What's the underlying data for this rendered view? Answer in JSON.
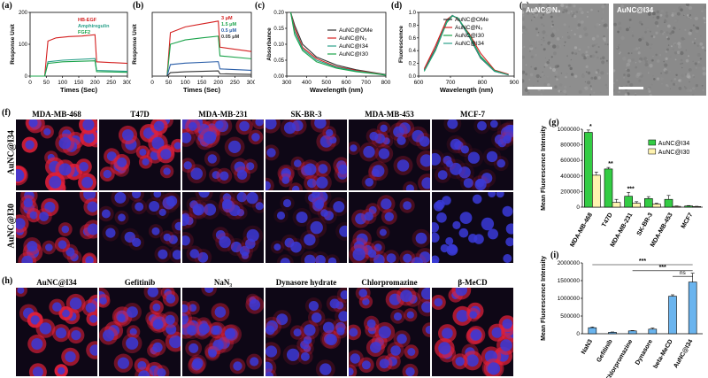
{
  "panel_labels": {
    "a": "(a)",
    "b": "(b)",
    "c": "(c)",
    "d": "(d)",
    "e": "(e)",
    "f": "(f)",
    "g": "(g)",
    "h": "(h)",
    "i": "(i)"
  },
  "colors": {
    "red": "#d42020",
    "green": "#1aa34a",
    "teal": "#2aa08a",
    "dark": "#333333",
    "gray": "#888888",
    "cell_bg": "#100818",
    "bar_green": "#33cc44",
    "bar_yellow": "#fff3b0",
    "bar_blue": "#6ab4ee"
  },
  "chart_data": [
    {
      "panel": "a",
      "type": "line",
      "xlabel": "Times (Sec)",
      "ylabel": "Response Unit",
      "xticks": [
        "0",
        "50",
        "100",
        "150",
        "200",
        "250",
        "300"
      ],
      "yticks": [
        "0",
        "100",
        "200"
      ],
      "xlim": [
        0,
        300
      ],
      "ylim": [
        0,
        200
      ],
      "series": [
        {
          "name": "HB-EGF",
          "color": "#d42020",
          "x": [
            0,
            45,
            55,
            80,
            120,
            160,
            200,
            205,
            300
          ],
          "y": [
            0,
            0,
            110,
            120,
            124,
            126,
            130,
            45,
            40
          ]
        },
        {
          "name": "Amphiregulin",
          "color": "#2aa08a",
          "x": [
            0,
            45,
            55,
            100,
            200,
            205,
            300
          ],
          "y": [
            0,
            0,
            45,
            50,
            55,
            18,
            15
          ]
        },
        {
          "name": "FGF2",
          "color": "#1aa34a",
          "x": [
            0,
            45,
            55,
            100,
            200,
            205,
            300
          ],
          "y": [
            0,
            0,
            40,
            45,
            48,
            14,
            12
          ]
        }
      ]
    },
    {
      "panel": "b",
      "type": "line",
      "xlabel": "Times (Sec)",
      "ylabel": "Response Unit",
      "xticks": [
        "0",
        "50",
        "100",
        "150",
        "200",
        "250",
        "300"
      ],
      "xlim": [
        0,
        300
      ],
      "ylim": [
        0,
        220
      ],
      "series": [
        {
          "name": "3 μM",
          "color": "#d42020",
          "x": [
            0,
            45,
            55,
            100,
            150,
            200,
            205,
            300
          ],
          "y": [
            0,
            0,
            150,
            170,
            180,
            190,
            100,
            85
          ]
        },
        {
          "name": "1.5 μM",
          "color": "#1aa34a",
          "x": [
            0,
            45,
            55,
            100,
            150,
            200,
            205,
            300
          ],
          "y": [
            0,
            0,
            110,
            125,
            132,
            138,
            70,
            60
          ]
        },
        {
          "name": "0.5 μM",
          "color": "#2a5ea8",
          "x": [
            0,
            45,
            55,
            100,
            200,
            205,
            300
          ],
          "y": [
            0,
            0,
            40,
            45,
            50,
            25,
            20
          ]
        },
        {
          "name": "0.05 μM",
          "color": "#333333",
          "x": [
            0,
            45,
            55,
            100,
            200,
            205,
            300
          ],
          "y": [
            0,
            0,
            12,
            15,
            18,
            8,
            6
          ]
        }
      ]
    },
    {
      "panel": "c",
      "type": "line",
      "xlabel": "Wavelength (nm)",
      "ylabel": "Absorbance",
      "xticks": [
        "300",
        "400",
        "500",
        "600",
        "700",
        "800"
      ],
      "yticks": [
        "0.00",
        "0.05",
        "0.10",
        "0.15",
        "0.20"
      ],
      "xlim": [
        300,
        800
      ],
      "ylim": [
        0,
        0.2
      ],
      "series": [
        {
          "name": "AuNC@OMe",
          "color": "#333333",
          "x": [
            320,
            340,
            380,
            450,
            550,
            650,
            750,
            800
          ],
          "y": [
            0.2,
            0.16,
            0.1,
            0.06,
            0.035,
            0.02,
            0.01,
            0.005
          ]
        },
        {
          "name": "AuNC@N3",
          "color": "#d42020",
          "x": [
            320,
            340,
            380,
            450,
            550,
            650,
            750,
            800
          ],
          "y": [
            0.2,
            0.15,
            0.09,
            0.055,
            0.03,
            0.018,
            0.009,
            0.004
          ]
        },
        {
          "name": "AuNC@I34",
          "color": "#2aa08a",
          "x": [
            320,
            340,
            380,
            450,
            550,
            650,
            750,
            800
          ],
          "y": [
            0.2,
            0.14,
            0.085,
            0.05,
            0.028,
            0.016,
            0.008,
            0.004
          ]
        },
        {
          "name": "AuNC@I30",
          "color": "#1aa34a",
          "x": [
            320,
            340,
            380,
            450,
            550,
            650,
            750,
            800
          ],
          "y": [
            0.2,
            0.13,
            0.08,
            0.045,
            0.025,
            0.014,
            0.007,
            0.003
          ]
        }
      ]
    },
    {
      "panel": "d",
      "type": "line",
      "xlabel": "Wavelength (nm)",
      "ylabel": "Fluorescence",
      "xticks": [
        "600",
        "700",
        "800",
        "900"
      ],
      "yticks": [
        "0.0",
        "0.2",
        "0.4",
        "0.6",
        "0.8",
        "1.0"
      ],
      "xlim": [
        580,
        920
      ],
      "ylim": [
        0,
        1.05
      ],
      "series": [
        {
          "name": "AuNC@OMe",
          "color": "#333333",
          "x": [
            600,
            640,
            680,
            700,
            720,
            760,
            800,
            850,
            900
          ],
          "y": [
            0.1,
            0.45,
            0.9,
            1.0,
            0.95,
            0.65,
            0.3,
            0.08,
            0.02
          ]
        },
        {
          "name": "AuNC@N3",
          "color": "#d42020",
          "x": [
            600,
            640,
            680,
            700,
            720,
            760,
            800,
            850,
            900
          ],
          "y": [
            0.12,
            0.5,
            0.93,
            1.0,
            0.94,
            0.7,
            0.38,
            0.1,
            0.03
          ]
        },
        {
          "name": "AuNC@I30",
          "color": "#1aa34a",
          "x": [
            600,
            640,
            680,
            700,
            720,
            760,
            800,
            850,
            900
          ],
          "y": [
            0.08,
            0.42,
            0.88,
            0.99,
            0.96,
            0.68,
            0.33,
            0.09,
            0.02
          ]
        },
        {
          "name": "AuNC@I34",
          "color": "#2aa08a",
          "x": [
            600,
            640,
            680,
            700,
            720,
            760,
            800,
            850,
            900
          ],
          "y": [
            0.09,
            0.43,
            0.9,
            1.0,
            0.95,
            0.66,
            0.31,
            0.08,
            0.02
          ]
        }
      ]
    },
    {
      "panel": "g",
      "type": "bar",
      "ylabel": "Mean Fluorescence Intensity",
      "categories": [
        "MDA-MB-468",
        "T47D",
        "MDA-MB-231",
        "SK-BR-3",
        "MDA-MB-453",
        "MCF7"
      ],
      "yticks": [
        "0",
        "200000",
        "400000",
        "600000",
        "800000",
        "1000000"
      ],
      "ylim": [
        0,
        1000000
      ],
      "series": [
        {
          "name": "AuNC@I34",
          "color": "#33cc44",
          "values": [
            960000,
            490000,
            140000,
            110000,
            100000,
            15000
          ],
          "errors": [
            30000,
            20000,
            50000,
            25000,
            50000,
            5000
          ]
        },
        {
          "name": "AuNC@I30",
          "color": "#fff3b0",
          "values": [
            410000,
            60000,
            50000,
            40000,
            10000,
            8000
          ],
          "errors": [
            40000,
            40000,
            20000,
            10000,
            5000,
            3000
          ]
        }
      ],
      "significance": [
        "*",
        "**",
        "***",
        "",
        "",
        ""
      ]
    },
    {
      "panel": "i",
      "type": "bar",
      "ylabel": "Mean Fluorescence Intensity",
      "categories": [
        "NaN3",
        "Gefitinib",
        "Chlorpromazine",
        "Dynasore",
        "beta-MeCD",
        "AuNC@I34"
      ],
      "yticks": [
        "0",
        "500000",
        "1000000",
        "1500000",
        "2000000"
      ],
      "ylim": [
        0,
        2000000
      ],
      "series": [
        {
          "name": "",
          "color": "#6ab4ee",
          "values": [
            170000,
            40000,
            80000,
            130000,
            1060000,
            1460000
          ],
          "errors": [
            20000,
            10000,
            10000,
            30000,
            40000,
            250000
          ]
        }
      ],
      "annotations": [
        "***",
        "***",
        "ns"
      ]
    }
  ],
  "legends": {
    "a": [
      "HB-EGF",
      "Amphiregulin",
      "FGF2"
    ],
    "b": [
      "3 μM",
      "1.5 μM",
      "0.5 μM",
      "0.05 μM"
    ],
    "c": [
      "AuNC@OMe",
      "AuNC@N₃",
      "AuNC@I34",
      "AuNC@I30"
    ],
    "d": [
      "AuNC@OMe",
      "AuNC@N₃",
      "AuNC@I30",
      "AuNC@I34"
    ],
    "g": [
      "AuNC@I34",
      "AuNC@I30"
    ]
  },
  "tem": {
    "left_label": "AuNC@N₃",
    "right_label": "AuNC@I34",
    "left_scale": "10 nm",
    "right_scale": "10 nm"
  },
  "f": {
    "columns": [
      "MDA-MB-468",
      "T47D",
      "MDA-MB-231",
      "SK-BR-3",
      "MDA-MB-453",
      "MCF-7"
    ],
    "rows": [
      "AuNC@I34",
      "AuNC@I30"
    ]
  },
  "h": {
    "columns": [
      "AuNC@I34",
      "Gefitinib",
      "NaN₃",
      "Dynasore hydrate",
      "Chlorpromazine",
      "β-MeCD"
    ]
  }
}
